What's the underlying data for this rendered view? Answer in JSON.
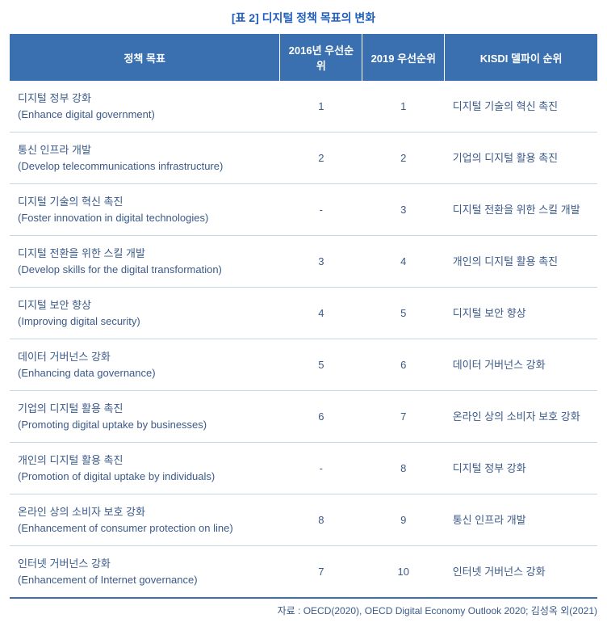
{
  "colors": {
    "caption": "#1f5fbf",
    "header_bg": "#3a6fb0",
    "header_text": "#ffffff",
    "body_text": "#3a5a8a",
    "row_border": "#c5d4e8",
    "bottom_border": "#3a6fb0"
  },
  "caption": "[표 2] 디지털 정책 목표의 변화",
  "table": {
    "columns": [
      "정책 목표",
      "2016년 우선순위",
      "2019 우선순위",
      "KISDI 델파이 순위"
    ],
    "rows": [
      {
        "policy_kr": "디지털 정부 강화",
        "policy_en": "(Enhance digital government)",
        "r2016": "1",
        "r2019": "1",
        "kisdi": "디지털 기술의 혁신 촉진"
      },
      {
        "policy_kr": "통신 인프라 개발",
        "policy_en": "(Develop telecommunications infrastructure)",
        "r2016": "2",
        "r2019": "2",
        "kisdi": "기업의 디지털 활용 촉진"
      },
      {
        "policy_kr": "디지털 기술의 혁신 촉진",
        "policy_en": "(Foster innovation in digital technologies)",
        "r2016": "-",
        "r2019": "3",
        "kisdi": "디지털 전환을 위한 스킬 개발"
      },
      {
        "policy_kr": "디지털 전환을 위한 스킬 개발",
        "policy_en": "(Develop skills for the digital transformation)",
        "r2016": "3",
        "r2019": "4",
        "kisdi": "개인의 디지털 활용 촉진"
      },
      {
        "policy_kr": "디지털 보안 향상",
        "policy_en": "(Improving digital security)",
        "r2016": "4",
        "r2019": "5",
        "kisdi": "디지털 보안 향상"
      },
      {
        "policy_kr": "데이터 거버넌스 강화",
        "policy_en": "(Enhancing data governance)",
        "r2016": "5",
        "r2019": "6",
        "kisdi": "데이터 거버넌스 강화"
      },
      {
        "policy_kr": "기업의 디지털 활용 촉진",
        "policy_en": "(Promoting digital uptake by businesses)",
        "r2016": "6",
        "r2019": "7",
        "kisdi": "온라인 상의 소비자 보호 강화"
      },
      {
        "policy_kr": "개인의 디지털 활용 촉진",
        "policy_en": "(Promotion of digital uptake by individuals)",
        "r2016": "-",
        "r2019": "8",
        "kisdi": "디지털 정부 강화"
      },
      {
        "policy_kr": "온라인 상의 소비자 보호 강화",
        "policy_en": "(Enhancement of consumer protection on line)",
        "r2016": "8",
        "r2019": "9",
        "kisdi": "통신 인프라 개발"
      },
      {
        "policy_kr": "인터넷 거버넌스 강화",
        "policy_en": "(Enhancement of Internet governance)",
        "r2016": "7",
        "r2019": "10",
        "kisdi": "인터넷 거버넌스 강화"
      }
    ]
  },
  "source": "자료 : OECD(2020), OECD Digital Economy Outlook 2020; 김성옥 외(2021)"
}
